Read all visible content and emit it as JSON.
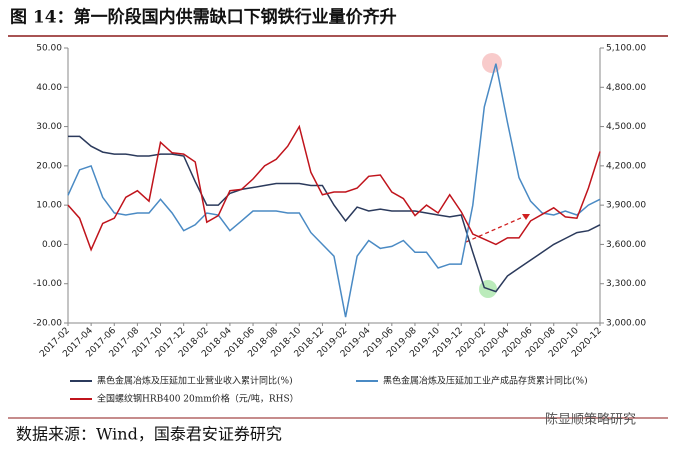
{
  "title": "图 14：第一阶段国内供需缺口下钢铁行业量价齐升",
  "source": "数据来源：Wind，国泰君安证券研究",
  "watermark": "陈显顺策略研究",
  "chart_data": {
    "type": "line",
    "categories": [
      "2017-02",
      null,
      "2017-04",
      null,
      "2017-06",
      null,
      "2017-08",
      null,
      "2017-10",
      null,
      "2017-12",
      null,
      "2018-02",
      null,
      "2018-04",
      null,
      "2018-06",
      null,
      "2018-08",
      null,
      "2018-10",
      null,
      "2018-12",
      null,
      "2019-02",
      null,
      "2019-04",
      null,
      "2019-06",
      null,
      "2019-08",
      null,
      "2019-10",
      null,
      "2019-12",
      null,
      "2020-02",
      null,
      "2020-04",
      null,
      "2020-06",
      null,
      "2020-08",
      null,
      "2020-10",
      null,
      "2020-12"
    ],
    "series": [
      {
        "name": "黑色金属冶炼及压延加工业营业收入累计同比(%)",
        "color": "#2b3a5c",
        "values": [
          27.5,
          27.5,
          25,
          23.5,
          23,
          23,
          22.5,
          22.5,
          23,
          23,
          22.5,
          16,
          10,
          10,
          13,
          14,
          14.5,
          15,
          15.5,
          15.5,
          15.5,
          15,
          15,
          10,
          6,
          9.5,
          8.5,
          9,
          8.5,
          8.5,
          8.5,
          8,
          7.5,
          7,
          7.5,
          -2,
          -11,
          -12,
          -8,
          -6,
          -4,
          -2,
          0,
          1.5,
          3,
          3.5,
          5
        ]
      },
      {
        "name": "黑色金属冶炼及压延加工业产成品存货累计同比(%)",
        "color": "#4a8ac4",
        "values": [
          12.5,
          19,
          20,
          12,
          8,
          7.5,
          8,
          8,
          11.5,
          8,
          3.5,
          5,
          8,
          7.5,
          3.5,
          6,
          8.5,
          8.5,
          8.5,
          8,
          8,
          3,
          0,
          -3,
          -18.5,
          -3,
          1,
          -1,
          -0.5,
          1,
          -2,
          -2,
          -6,
          -5,
          -5,
          10,
          35,
          46,
          31,
          17,
          11,
          8,
          7.5,
          8.5,
          7.5,
          10,
          11.5
        ]
      },
      {
        "name": "全国螺纹钢HRB400 20mm价格（元/吨，RHS）",
        "color": "#c0141c",
        "axis": "y2",
        "values": [
          3900,
          3800,
          3560,
          3760,
          3800,
          3960,
          4010,
          3930,
          4380,
          4300,
          4290,
          4230,
          3770,
          3820,
          4010,
          4020,
          4100,
          4200,
          4250,
          4350,
          4500,
          4150,
          3980,
          4000,
          4000,
          4030,
          4120,
          4130,
          4000,
          3950,
          3820,
          3900,
          3840,
          3980,
          3850,
          3680,
          3640,
          3600,
          3650,
          3650,
          3780,
          3830,
          3880,
          3810,
          3800,
          4030,
          4310
        ]
      }
    ],
    "ylim": [
      -20,
      50
    ],
    "yticks": [
      {
        "value": -20,
        "label": "-20.00"
      },
      {
        "value": -10,
        "label": "-10.00"
      },
      {
        "value": 0,
        "label": "0.00"
      },
      {
        "value": 10,
        "label": "10.00"
      },
      {
        "value": 20,
        "label": "20.00"
      },
      {
        "value": 30,
        "label": "30.00"
      },
      {
        "value": 40,
        "label": "40.00"
      },
      {
        "value": 50,
        "label": "50.00"
      }
    ],
    "y2lim": [
      3000,
      5100
    ],
    "y2ticks": [
      {
        "value": 3000,
        "label": "3,000.00"
      },
      {
        "value": 3300,
        "label": "3,300.00"
      },
      {
        "value": 3600,
        "label": "3,600.00"
      },
      {
        "value": 3900,
        "label": "3,900.00"
      },
      {
        "value": 4200,
        "label": "4,200.00"
      },
      {
        "value": 4500,
        "label": "4,500.00"
      },
      {
        "value": 4800,
        "label": "4,800.00"
      },
      {
        "value": 5100,
        "label": "5,100.00"
      }
    ],
    "grid": false
  }
}
